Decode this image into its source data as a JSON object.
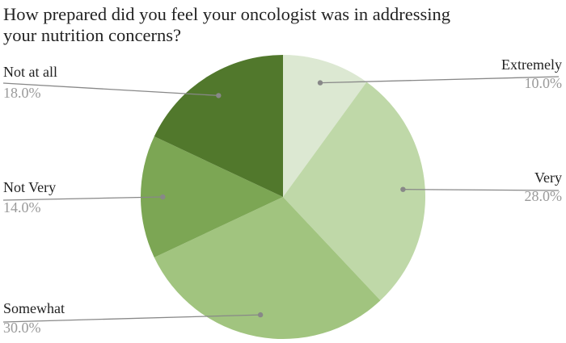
{
  "chart_data": {
    "type": "pie",
    "title_lines": [
      "How prepared did you feel your oncologist was in addressing",
      "your nutrition concerns?"
    ],
    "slices": [
      {
        "label": "Extremely",
        "value": 10.0,
        "value_label": "10.0%",
        "color": "#dce8d2"
      },
      {
        "label": "Very",
        "value": 28.0,
        "value_label": "28.0%",
        "color": "#bfd8a8"
      },
      {
        "label": "Somewhat",
        "value": 30.0,
        "value_label": "30.0%",
        "color": "#a1c47f"
      },
      {
        "label": "Not Very",
        "value": 14.0,
        "value_label": "14.0%",
        "color": "#7ca654"
      },
      {
        "label": "Not at all",
        "value": 18.0,
        "value_label": "18.0%",
        "color": "#51782c"
      }
    ],
    "start_angle_deg": 0,
    "direction": "clockwise",
    "legend": "none",
    "label_style": "callout lines",
    "leader_color": "#888888"
  }
}
